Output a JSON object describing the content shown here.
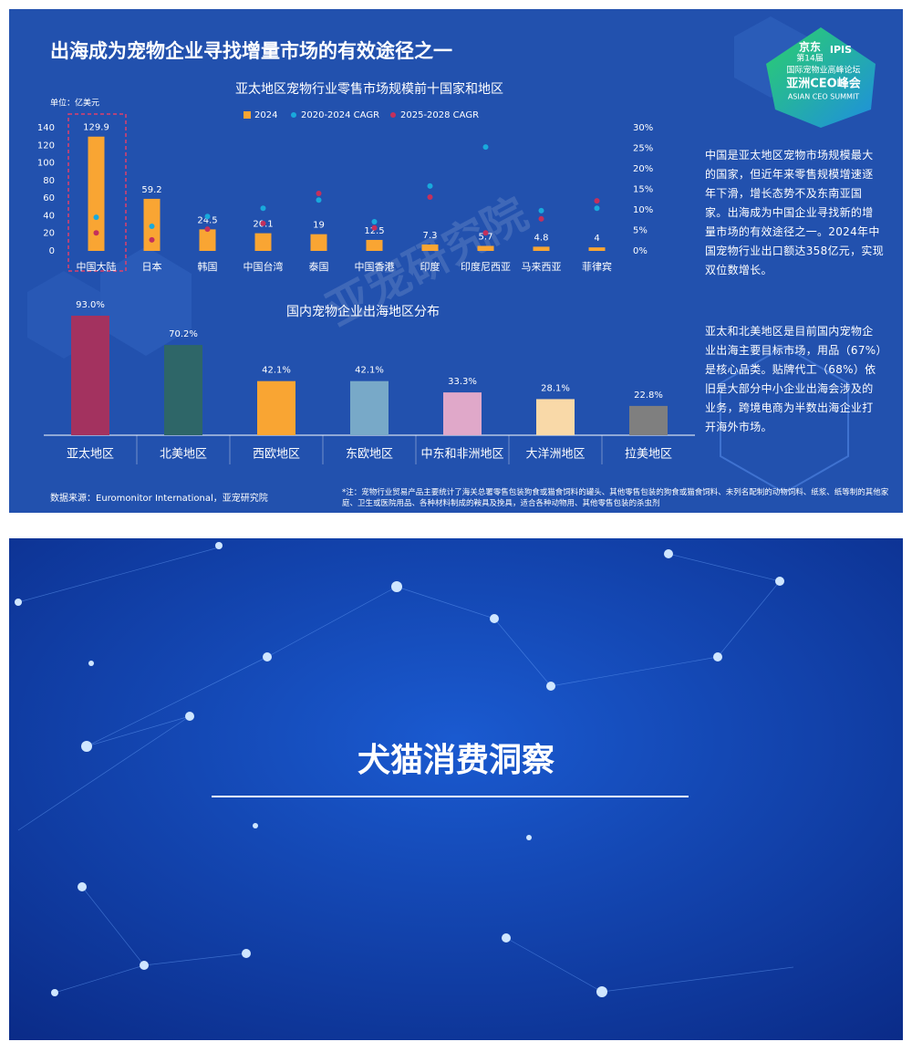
{
  "slide1_title": "出海成为宠物企业寻找增量市场的有效途径之一",
  "logo": {
    "lines": [
      "京东",
      "第14届",
      "IPIS",
      "国际宠物业高峰论坛",
      "亚洲CEO峰会",
      "ASIAN CEO SUMMIT"
    ]
  },
  "watermark": "亚宠研究院",
  "chart_data": [
    {
      "type": "bar",
      "title": "亚太地区宠物行业零售市场规模前十国家和地区",
      "unit": "单位：亿美元",
      "categories": [
        "中国大陆",
        "日本",
        "韩国",
        "中国台湾",
        "泰国",
        "中国香港",
        "印度",
        "印度尼西亚",
        "马来西亚",
        "菲律宾"
      ],
      "series": [
        {
          "name": "2024",
          "type": "bar",
          "color": "#f9a533",
          "values": [
            129.9,
            59.2,
            24.5,
            20.1,
            19.0,
            12.5,
            7.3,
            5.7,
            4.8,
            4.0
          ]
        },
        {
          "name": "2020-2024 CAGR",
          "type": "scatter",
          "axis": "y2",
          "color": "#19a9dc",
          "values": [
            8.2,
            6.0,
            8.4,
            10.4,
            12.4,
            7.1,
            15.8,
            25.3,
            9.8,
            10.4
          ]
        },
        {
          "name": "2025-2028 CAGR",
          "type": "scatter",
          "axis": "y2",
          "color": "#c4305c",
          "values": [
            4.4,
            2.7,
            5.3,
            6.7,
            14.0,
            5.6,
            13.1,
            4.4,
            7.8,
            12.2
          ]
        }
      ],
      "ylim": [
        0,
        140
      ],
      "yticks": [
        0,
        20,
        40,
        60,
        80,
        100,
        120,
        140
      ],
      "y2lim": [
        0,
        30
      ],
      "y2ticks": [
        {
          "value": 0,
          "label": "0%"
        },
        {
          "value": 5,
          "label": "5%"
        },
        {
          "value": 10,
          "label": "10%"
        },
        {
          "value": 15,
          "label": "15%"
        },
        {
          "value": 20,
          "label": "20%"
        },
        {
          "value": 25,
          "label": "25%"
        },
        {
          "value": 30,
          "label": "30%"
        }
      ],
      "grid": false
    },
    {
      "type": "bar",
      "title": "国内宠物企业出海地区分布",
      "categories": [
        "亚太地区",
        "北美地区",
        "西欧地区",
        "东欧地区",
        "中东和非洲地区",
        "大洋洲地区",
        "拉美地区"
      ],
      "values": [
        93.0,
        70.2,
        42.1,
        42.1,
        33.3,
        28.1,
        22.8
      ],
      "value_labels": [
        "93.0%",
        "70.2%",
        "42.1%",
        "42.1%",
        "33.3%",
        "28.1%",
        "22.8%"
      ],
      "colors": [
        "#a3325f",
        "#2e6668",
        "#f9a533",
        "#78a9c8",
        "#e0a8c9",
        "#f9d9a8",
        "#7f7f7f"
      ]
    }
  ],
  "side_text": [
    "中国是亚太地区宠物市场规模最大的国家，但近年来零售规模增速逐年下滑，增长态势不及东南亚国家。出海成为中国企业寻找新的增量市场的有效途径之一。2024年中国宠物行业出口额达358亿元，实现双位数增长。",
    "亚太和北美地区是目前国内宠物企业出海主要目标市场，用品（67%）是核心品类。贴牌代工（68%）依旧是大部分中小企业出海会涉及的业务，跨境电商为半数出海企业打开海外市场。"
  ],
  "source": "数据来源：Euromonitor International，亚宠研究院",
  "note": "*注：宠物行业贸易产品主要统计了海关总署零售包装狗食或猫食饲料的罐头、其他零售包装的狗食或猫食饲料、未列名配制的动物饲料、纸浆、纸等制的其他家庭、卫生或医院用品、各种材料制成的鞍具及挽具，适合各种动物用、其他零售包装的杀虫剂",
  "slide2_title": "犬猫消费洞察"
}
